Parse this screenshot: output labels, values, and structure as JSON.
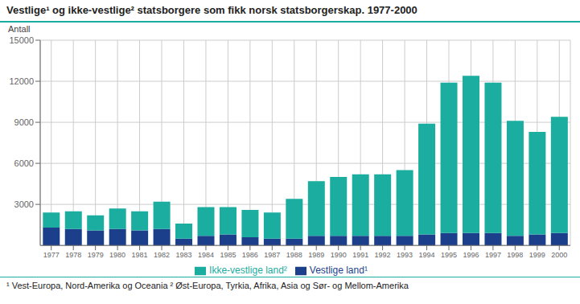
{
  "chart_data": {
    "type": "bar",
    "title": "Vestlige¹ og ikke-vestlige² statsborgere som fikk norsk statsborgerskap. 1977-2000",
    "ylabel": "Antall",
    "annotations": [
      "¹ Vest-Europa, Nord-Amerika og Oceania  ² Øst-Europa, Tyrkia, Afrika, Asia og Sør- og Mellom-Amerika"
    ],
    "categories": [
      "1977",
      "1978",
      "1979",
      "1980",
      "1981",
      "1982",
      "1983",
      "1984",
      "1985",
      "1986",
      "1987",
      "1988",
      "1989",
      "1990",
      "1991",
      "1992",
      "1993",
      "1994",
      "1995",
      "1996",
      "1997",
      "1998",
      "1999",
      "2000"
    ],
    "series": [
      {
        "name": "Vestlige land¹",
        "color": "#1c3f8c",
        "values": [
          1300,
          1200,
          1100,
          1200,
          1100,
          1200,
          500,
          700,
          800,
          600,
          500,
          500,
          700,
          700,
          700,
          700,
          700,
          800,
          900,
          900,
          900,
          700,
          800,
          900
        ]
      },
      {
        "name": "Ikke-vestlige land²",
        "color": "#1aada0",
        "values": [
          1100,
          1300,
          1100,
          1500,
          1400,
          2000,
          1100,
          2100,
          2000,
          2000,
          1900,
          2900,
          4000,
          4300,
          4500,
          4500,
          4800,
          8100,
          11000,
          11500,
          11000,
          8400,
          7500,
          8500
        ]
      }
    ],
    "stacked": true,
    "ylim": [
      0,
      15000
    ],
    "yticks": [
      3000,
      6000,
      9000,
      12000,
      15000
    ],
    "grid": true,
    "legend": "bottom"
  }
}
